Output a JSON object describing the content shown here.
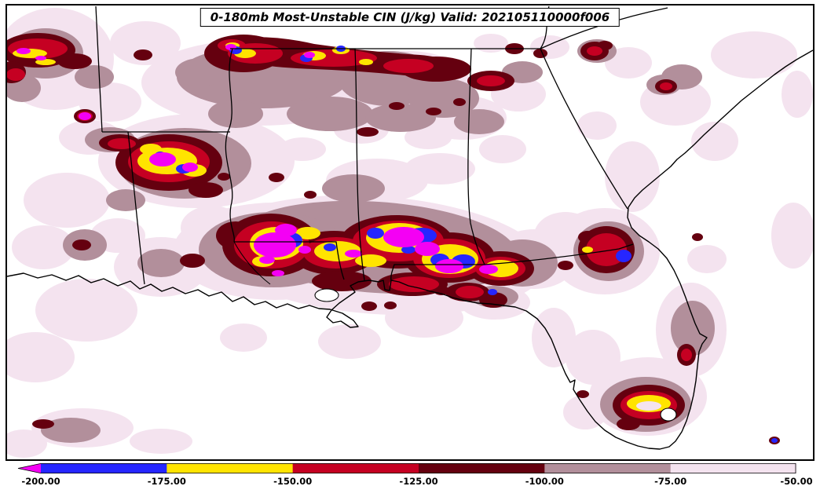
{
  "title": "0-180mb Most-Unstable CIN (J/kg) Valid: 202105110000f006",
  "chart_data": {
    "type": "heatmap",
    "subtype": "filled-contour weather map over state boundaries",
    "title": "0-180mb Most-Unstable CIN (J/kg) Valid: 202105110000f006",
    "variable": "Most-Unstable CIN",
    "pressure_layer": "0-180mb",
    "units": "J/kg",
    "valid_time": "202105110000f006",
    "legend_position": "bottom",
    "grid": false,
    "colorbar": {
      "orientation": "horizontal",
      "extend_left": true,
      "extend_left_color": "#f400f4",
      "levels": [
        -200,
        -175,
        -150,
        -125,
        -100,
        -75,
        -50
      ],
      "tick_labels": [
        "-200.00",
        "-175.00",
        "-150.00",
        "-125.00",
        "-100.00",
        "-75.00",
        "-50.00"
      ],
      "interval_colors": [
        "#2626ff",
        "#ffe400",
        "#c50022",
        "#65000f",
        "#b28f9b",
        "#f4e3ef"
      ],
      "interval_ranges": [
        "-200 to -175",
        "-175 to -150",
        "-150 to -125",
        "-125 to -100",
        "-100 to -75",
        "-75 to -50"
      ],
      "below_minimum_color_meaning": "CIN below -200 J/kg (magenta arrow)"
    }
  }
}
